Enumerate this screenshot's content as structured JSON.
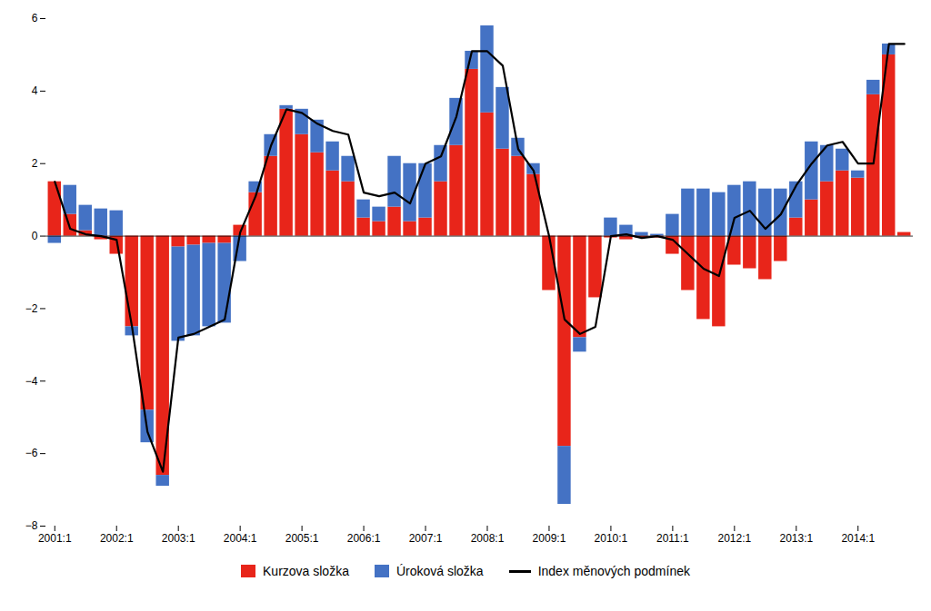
{
  "chart_data": {
    "type": "bar",
    "stacked": true,
    "grid": false,
    "legend": "bottom",
    "categories": [
      "2001:1",
      null,
      null,
      null,
      "2002:1",
      null,
      null,
      null,
      "2003:1",
      null,
      null,
      null,
      "2004:1",
      null,
      null,
      null,
      "2005:1",
      null,
      null,
      null,
      "2006:1",
      null,
      null,
      null,
      "2007:1",
      null,
      null,
      null,
      "2008:1",
      null,
      null,
      null,
      "2009:1",
      null,
      null,
      null,
      "2010:1",
      null,
      null,
      null,
      "2011:1",
      null,
      null,
      null,
      "2012:1",
      null,
      null,
      null,
      "2013:1",
      null,
      null,
      null,
      "2014:1",
      null,
      null,
      null
    ],
    "ylim": [
      -8,
      6
    ],
    "yticks": [
      -8,
      -6,
      -4,
      -2,
      0,
      2,
      4,
      6
    ],
    "series": [
      {
        "name": "Kurzova složka",
        "type": "bar",
        "color": "#E8251A",
        "values": [
          1.5,
          0.6,
          0.15,
          -0.1,
          -0.5,
          -2.5,
          -4.8,
          -6.6,
          -0.3,
          -0.25,
          -0.2,
          -0.2,
          0.3,
          1.2,
          2.2,
          3.5,
          2.8,
          2.3,
          1.8,
          1.5,
          0.5,
          0.4,
          0.8,
          0.4,
          0.5,
          1.5,
          2.5,
          4.6,
          3.4,
          2.4,
          2.2,
          1.7,
          -1.5,
          -5.8,
          -2.8,
          -1.7,
          -0.05,
          -0.1,
          -0.05,
          -0.05,
          -0.5,
          -1.5,
          -2.3,
          -2.5,
          -0.8,
          -0.9,
          -1.2,
          -0.7,
          0.5,
          1.0,
          1.5,
          1.8,
          1.6,
          3.9,
          5.0,
          0.1
        ]
      },
      {
        "name": "Úroková složka",
        "type": "bar",
        "color": "#4472C4",
        "values": [
          -0.2,
          0.8,
          0.7,
          0.75,
          0.7,
          -0.25,
          -0.9,
          -0.3,
          -2.6,
          -2.5,
          -2.3,
          -2.2,
          -0.7,
          0.3,
          0.6,
          0.1,
          0.7,
          0.9,
          0.8,
          0.7,
          0.5,
          0.4,
          1.4,
          1.6,
          1.5,
          1.0,
          1.3,
          0.5,
          2.4,
          1.7,
          0.5,
          0.3,
          0.0,
          -1.6,
          -0.4,
          0.0,
          0.5,
          0.3,
          0.1,
          0.05,
          0.6,
          1.3,
          1.3,
          1.2,
          1.4,
          1.5,
          1.3,
          1.3,
          1.0,
          1.6,
          1.0,
          0.6,
          0.2,
          0.4,
          0.3,
          0.0
        ]
      },
      {
        "name": "Index měnových podmínek",
        "type": "line",
        "color": "#000000",
        "values": [
          1.5,
          0.2,
          0.05,
          0.0,
          -0.1,
          -2.5,
          -5.4,
          -6.5,
          -2.8,
          -2.7,
          -2.5,
          -2.3,
          0.1,
          1.1,
          2.5,
          3.5,
          3.4,
          3.1,
          2.9,
          2.8,
          1.2,
          1.1,
          1.2,
          0.9,
          2.0,
          2.2,
          3.3,
          5.1,
          5.1,
          4.7,
          2.4,
          1.8,
          0.0,
          -2.3,
          -2.7,
          -2.5,
          0.0,
          0.05,
          -0.05,
          0.0,
          -0.1,
          -0.5,
          -0.9,
          -1.1,
          0.5,
          0.7,
          0.2,
          0.6,
          1.4,
          2.0,
          2.5,
          2.6,
          2.0,
          2.0,
          5.3,
          5.3
        ]
      }
    ]
  }
}
